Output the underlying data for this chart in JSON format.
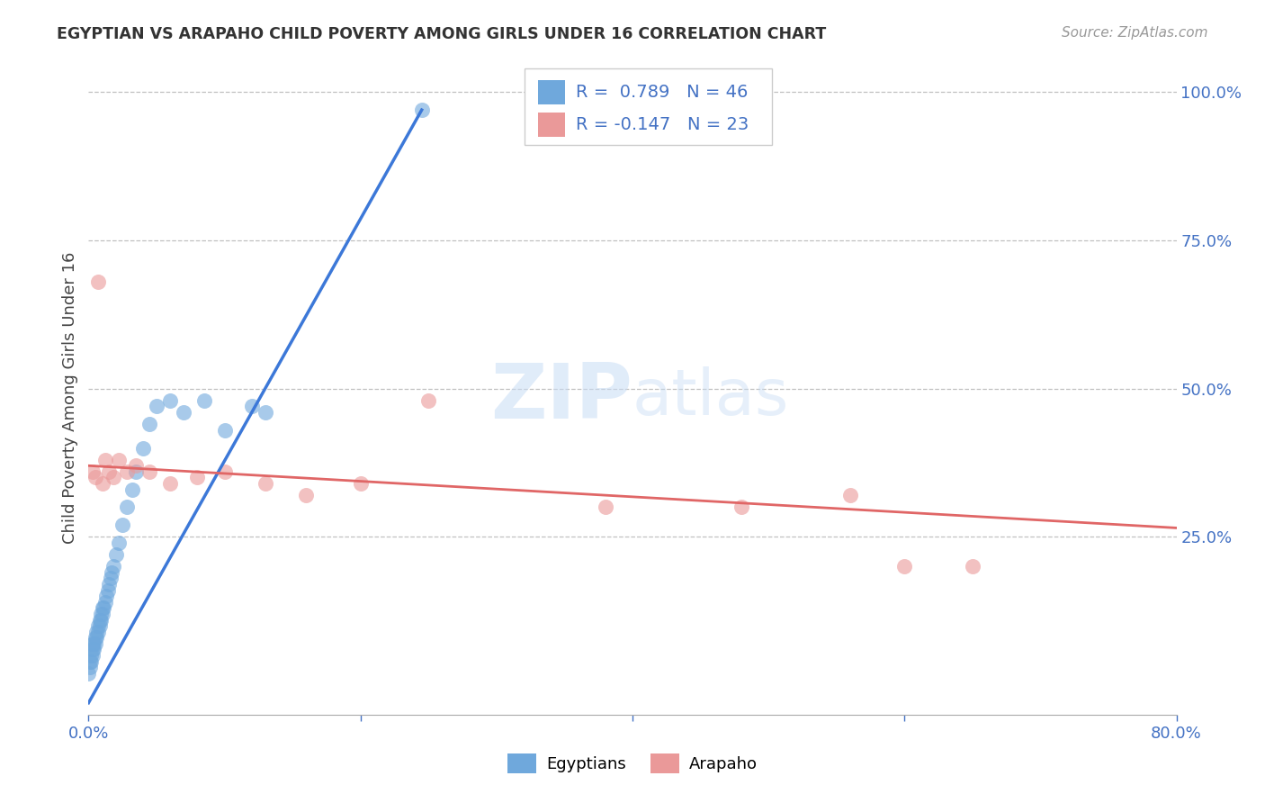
{
  "title": "EGYPTIAN VS ARAPAHO CHILD POVERTY AMONG GIRLS UNDER 16 CORRELATION CHART",
  "source": "Source: ZipAtlas.com",
  "ylabel": "Child Poverty Among Girls Under 16",
  "x_min": 0.0,
  "x_max": 0.8,
  "y_min": -0.05,
  "y_max": 1.02,
  "color_blue": "#6fa8dc",
  "color_pink": "#ea9999",
  "line_color_blue": "#3c78d8",
  "line_color_pink": "#e06666",
  "watermark_zip": "ZIP",
  "watermark_atlas": "atlas",
  "background_color": "#ffffff",
  "grid_color": "#c0c0c0",
  "title_color": "#333333",
  "source_color": "#999999",
  "right_tick_color": "#4472c4",
  "blue_scatter_x": [
    0.0,
    0.001,
    0.001,
    0.002,
    0.002,
    0.003,
    0.003,
    0.003,
    0.004,
    0.004,
    0.005,
    0.005,
    0.006,
    0.006,
    0.007,
    0.007,
    0.008,
    0.008,
    0.009,
    0.009,
    0.01,
    0.01,
    0.011,
    0.012,
    0.013,
    0.014,
    0.015,
    0.016,
    0.017,
    0.018,
    0.02,
    0.022,
    0.025,
    0.028,
    0.032,
    0.035,
    0.04,
    0.045,
    0.05,
    0.06,
    0.07,
    0.085,
    0.1,
    0.12,
    0.13,
    0.245
  ],
  "blue_scatter_y": [
    0.02,
    0.03,
    0.04,
    0.04,
    0.05,
    0.05,
    0.06,
    0.07,
    0.06,
    0.07,
    0.07,
    0.08,
    0.08,
    0.09,
    0.09,
    0.1,
    0.1,
    0.11,
    0.11,
    0.12,
    0.12,
    0.13,
    0.13,
    0.14,
    0.15,
    0.16,
    0.17,
    0.18,
    0.19,
    0.2,
    0.22,
    0.24,
    0.27,
    0.3,
    0.33,
    0.36,
    0.4,
    0.44,
    0.47,
    0.48,
    0.46,
    0.48,
    0.43,
    0.47,
    0.46,
    0.97
  ],
  "pink_scatter_x": [
    0.003,
    0.005,
    0.007,
    0.01,
    0.012,
    0.015,
    0.018,
    0.022,
    0.028,
    0.035,
    0.045,
    0.06,
    0.08,
    0.1,
    0.13,
    0.16,
    0.2,
    0.25,
    0.38,
    0.48,
    0.56,
    0.6,
    0.65
  ],
  "pink_scatter_y": [
    0.36,
    0.35,
    0.68,
    0.34,
    0.38,
    0.36,
    0.35,
    0.38,
    0.36,
    0.37,
    0.36,
    0.34,
    0.35,
    0.36,
    0.34,
    0.32,
    0.34,
    0.48,
    0.3,
    0.3,
    0.32,
    0.2,
    0.2
  ],
  "blue_line_x0": 0.0,
  "blue_line_y0": -0.03,
  "blue_line_x1": 0.245,
  "blue_line_y1": 0.97,
  "pink_line_x0": 0.0,
  "pink_line_y0": 0.37,
  "pink_line_x1": 0.8,
  "pink_line_y1": 0.265,
  "legend_r1_text": "R =  0.789",
  "legend_n1_text": "N = 46",
  "legend_r2_text": "R = -0.147",
  "legend_n2_text": "N = 23",
  "legend_label1": "Egyptians",
  "legend_label2": "Arapaho"
}
